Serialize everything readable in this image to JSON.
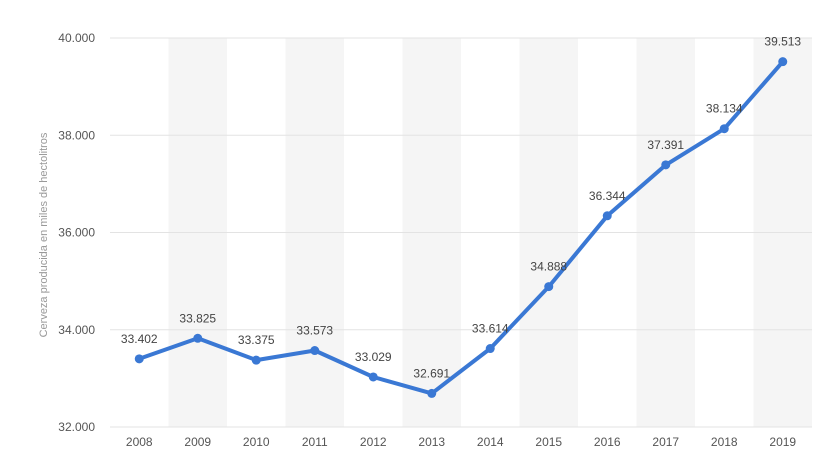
{
  "chart_data": {
    "type": "line",
    "title": "",
    "xlabel": "",
    "ylabel": "Cerveza producida en miles de hectolitros",
    "x": [
      "2008",
      "2009",
      "2010",
      "2011",
      "2012",
      "2013",
      "2014",
      "2015",
      "2016",
      "2017",
      "2018",
      "2019"
    ],
    "series": [
      {
        "values": [
          33402,
          33825,
          33375,
          33573,
          33029,
          32691,
          33614,
          34888,
          36344,
          37391,
          38134,
          39513
        ],
        "labels": [
          "33.402",
          "33.825",
          "33.375",
          "33.573",
          "33.029",
          "32.691",
          "33.614",
          "34.888",
          "36.344",
          "37.391",
          "38.134",
          "39.513"
        ]
      }
    ],
    "ylim": [
      32000,
      40000
    ],
    "yticks": [
      32000,
      34000,
      36000,
      38000,
      40000
    ],
    "ytick_labels": [
      "32.000",
      "34.000",
      "36.000",
      "38.000",
      "40.000"
    ],
    "grid": true,
    "colors": {
      "line": "#3a78d4",
      "band": "#f5f5f5",
      "grid": "#e3e3e3"
    }
  }
}
